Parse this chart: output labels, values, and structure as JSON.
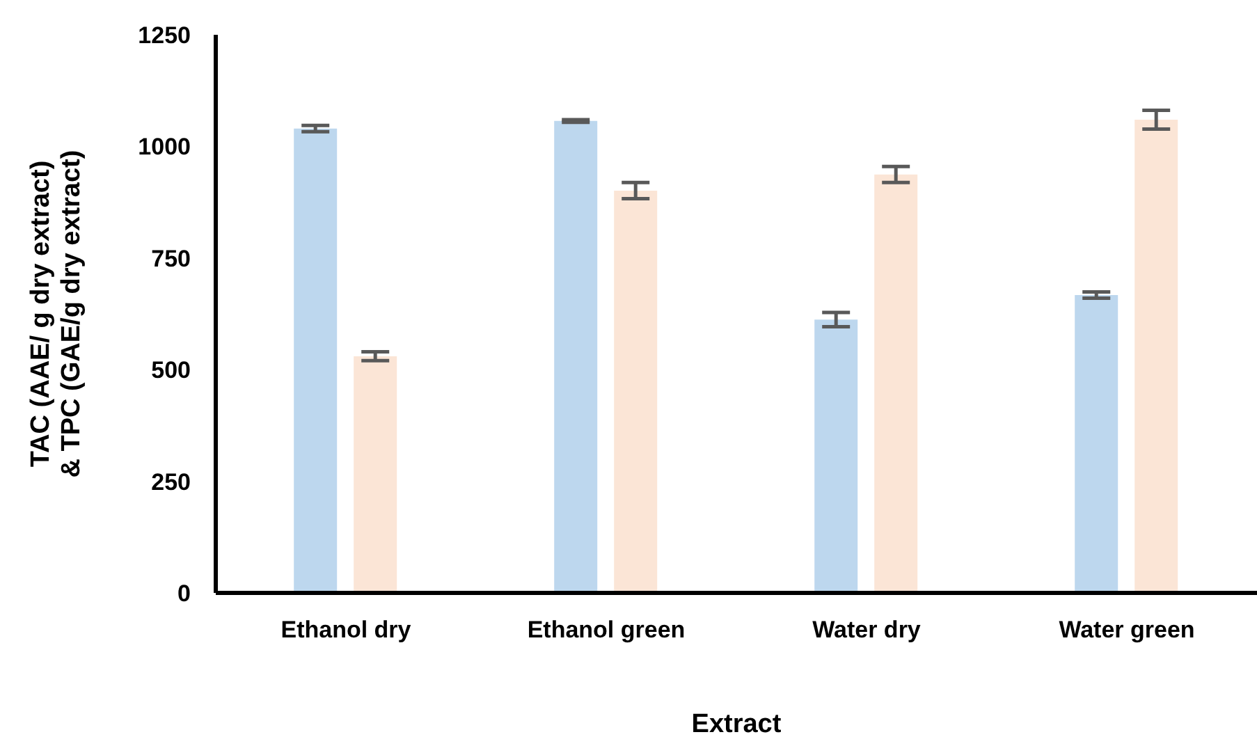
{
  "chart_data": {
    "type": "bar",
    "xlabel": "Extract",
    "ylabel": "TAC (AAE/ g dry extract)\n& TPC (GAE/g dry extract)",
    "categories": [
      "Ethanol dry",
      "Ethanol green",
      "Water dry",
      "Water green"
    ],
    "series": [
      {
        "color": "#bdd7ee",
        "values": [
          1040,
          1057,
          612,
          667
        ],
        "errors": [
          7,
          3,
          16,
          7
        ]
      },
      {
        "color": "#fbe5d6",
        "values": [
          530,
          901,
          937,
          1060
        ],
        "errors": [
          10,
          18,
          18,
          21
        ]
      }
    ],
    "ylim": [
      0,
      1250
    ],
    "yticks": [
      0,
      250,
      500,
      750,
      1000,
      1250
    ],
    "grid": false,
    "legend": false
  }
}
